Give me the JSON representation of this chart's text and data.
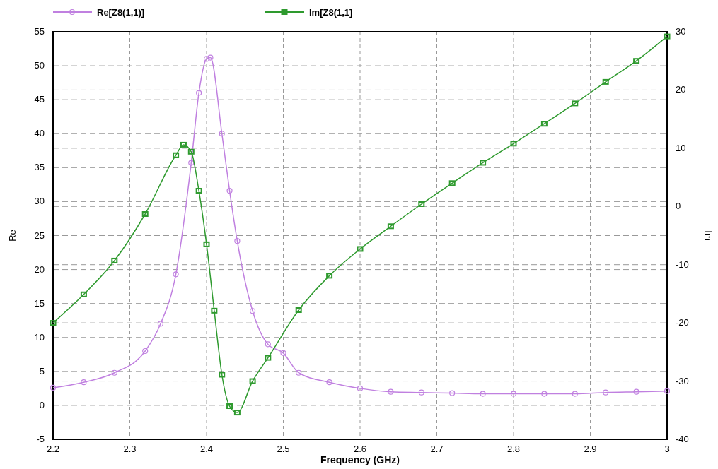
{
  "chart_data": {
    "type": "line",
    "xlabel": "Frequency (GHz)",
    "ylabel": "Re",
    "y2label": "Im",
    "xlim": [
      2.2,
      3
    ],
    "xticks": [
      2.2,
      2.3,
      2.4,
      2.5,
      2.6,
      2.7,
      2.8,
      2.9,
      3
    ],
    "ylim": [
      -5,
      55
    ],
    "yticks": [
      -5,
      0,
      5,
      10,
      15,
      20,
      25,
      30,
      35,
      40,
      45,
      50,
      55
    ],
    "y2lim": [
      -40,
      30
    ],
    "y2ticks": [
      -40,
      -30,
      -20,
      -10,
      0,
      10,
      20,
      30
    ],
    "grid": true,
    "legend": "top left",
    "line_style": "solid",
    "series": [
      {
        "name": "Re[Z8(1,1)]",
        "color": "#c080e0",
        "marker": "circle",
        "x": [
          2.2,
          2.24,
          2.28,
          2.32,
          2.34,
          2.36,
          2.38,
          2.39,
          2.4,
          2.405,
          2.42,
          2.43,
          2.44,
          2.46,
          2.48,
          2.5,
          2.52,
          2.56,
          2.6,
          2.64,
          2.68,
          2.72,
          2.76,
          2.8,
          2.84,
          2.88,
          2.92,
          2.96,
          3
        ],
        "values": [
          2.6,
          3.4,
          4.8,
          8,
          12,
          19.3,
          35.7,
          46,
          51,
          51.2,
          40,
          31.6,
          24.2,
          13.9,
          9,
          7.7,
          4.8,
          3.4,
          2.5,
          2,
          1.9,
          1.8,
          1.7,
          1.7,
          1.7,
          1.7,
          1.9,
          2,
          2.1
        ]
      },
      {
        "name": "Im[Z8(1,1]",
        "color": "#2e9a2e",
        "marker": "square",
        "axis": "y2",
        "x": [
          2.2,
          2.24,
          2.28,
          2.32,
          2.36,
          2.37,
          2.38,
          2.39,
          2.4,
          2.41,
          2.42,
          2.43,
          2.44,
          2.46,
          2.48,
          2.52,
          2.56,
          2.6,
          2.64,
          2.68,
          2.72,
          2.76,
          2.8,
          2.84,
          2.88,
          2.92,
          2.96,
          3
        ],
        "values": [
          -20,
          -15.1,
          -9.3,
          -1.3,
          8.8,
          10.6,
          9.4,
          2.7,
          -6.5,
          -17.9,
          -28.9,
          -34.3,
          -35.4,
          -30,
          -26,
          -17.8,
          -11.9,
          -7.3,
          -3.4,
          0.4,
          4,
          7.5,
          10.8,
          14.2,
          17.7,
          21.4,
          25,
          29.2
        ]
      }
    ]
  }
}
